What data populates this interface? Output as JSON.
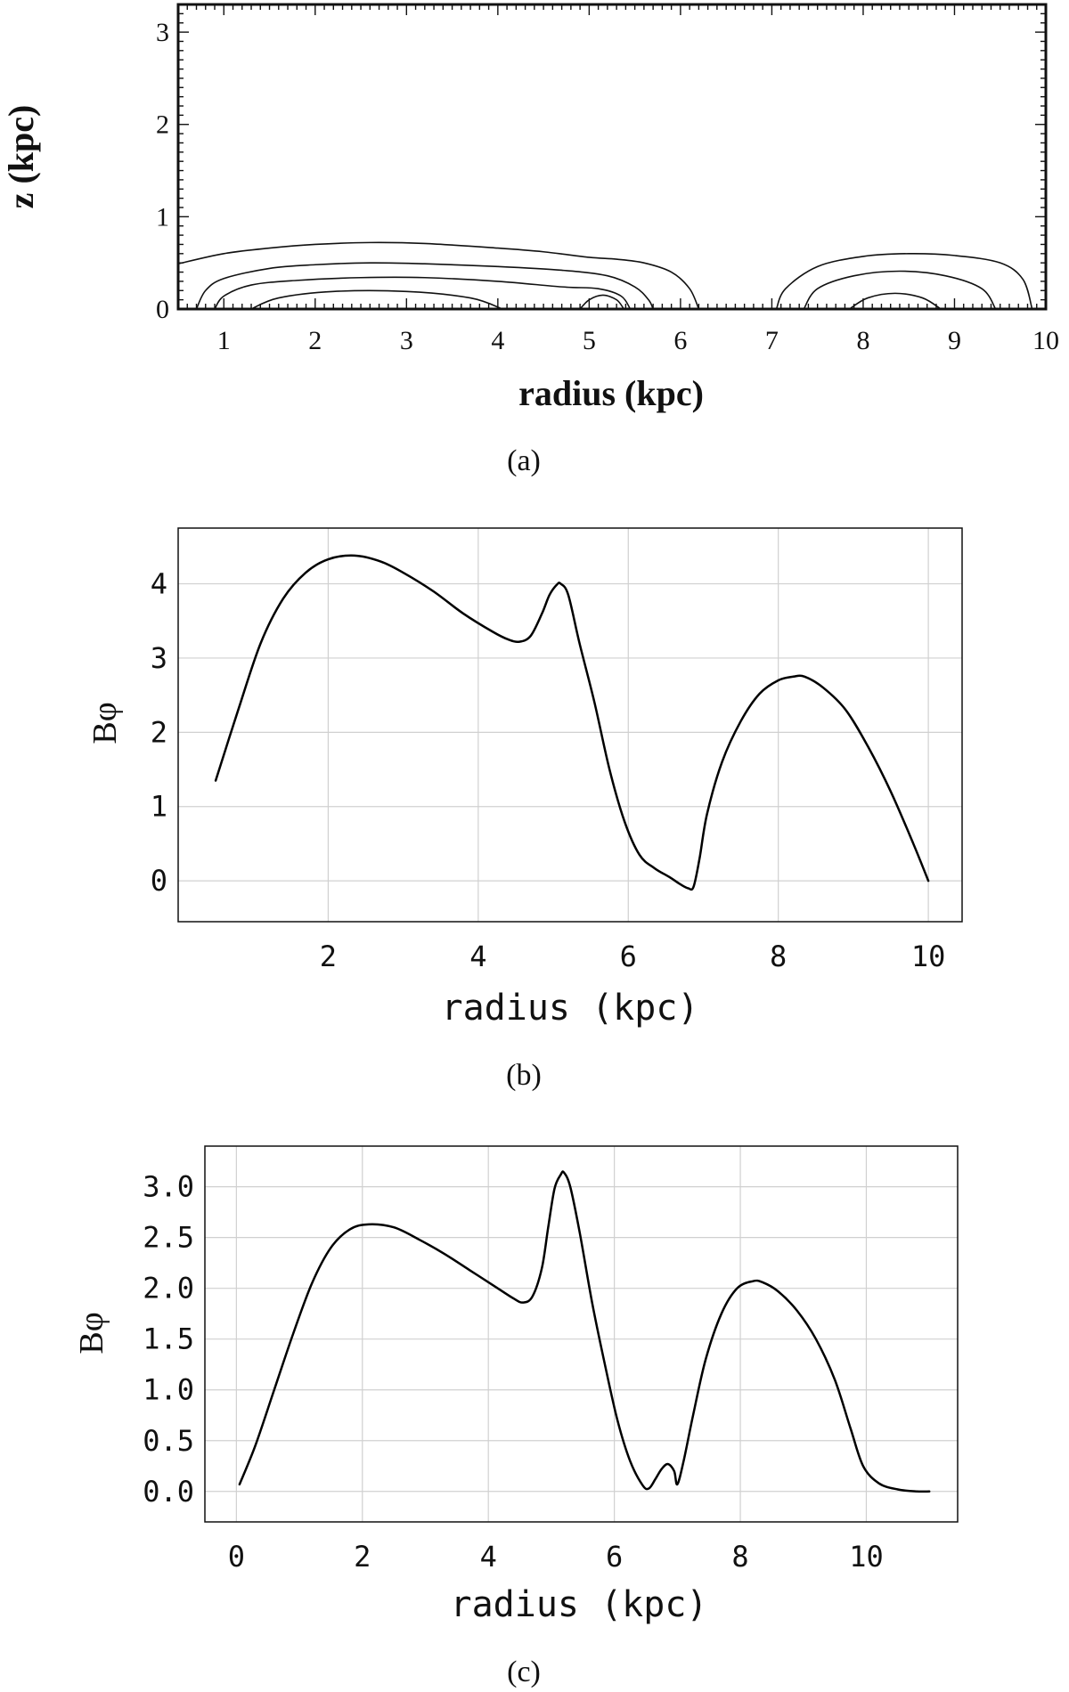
{
  "chart_data": [
    {
      "panel_label": "(a)",
      "type": "contour",
      "xlabel": "radius (kpc)",
      "ylabel": "z (kpc)",
      "xlim": [
        0.5,
        10
      ],
      "ylim": [
        0,
        3.3
      ],
      "xticks": [
        "1",
        "2",
        "3",
        "4",
        "5",
        "6",
        "7",
        "8",
        "9",
        "10"
      ],
      "yticks": [
        "0",
        "1",
        "2",
        "3"
      ],
      "grid": false,
      "contours": [
        {
          "region": "inner",
          "points": [
            [
              0.5,
              0.49
            ],
            [
              1.0,
              0.6
            ],
            [
              1.5,
              0.66
            ],
            [
              2.0,
              0.7
            ],
            [
              2.6,
              0.72
            ],
            [
              3.2,
              0.71
            ],
            [
              4.0,
              0.66
            ],
            [
              4.5,
              0.62
            ],
            [
              5.0,
              0.56
            ],
            [
              5.3,
              0.54
            ],
            [
              5.6,
              0.5
            ],
            [
              5.9,
              0.4
            ],
            [
              6.1,
              0.22
            ],
            [
              6.2,
              0.0
            ]
          ]
        },
        {
          "region": "inner",
          "points": [
            [
              0.7,
              0.0
            ],
            [
              0.8,
              0.2
            ],
            [
              1.0,
              0.33
            ],
            [
              1.5,
              0.44
            ],
            [
              2.0,
              0.48
            ],
            [
              2.6,
              0.5
            ],
            [
              3.2,
              0.49
            ],
            [
              4.0,
              0.46
            ],
            [
              4.7,
              0.42
            ],
            [
              5.2,
              0.36
            ],
            [
              5.5,
              0.24
            ],
            [
              5.65,
              0.1
            ],
            [
              5.7,
              0.0
            ]
          ]
        },
        {
          "region": "inner",
          "points": [
            [
              0.9,
              0.0
            ],
            [
              1.0,
              0.14
            ],
            [
              1.3,
              0.26
            ],
            [
              1.8,
              0.31
            ],
            [
              2.5,
              0.34
            ],
            [
              3.2,
              0.34
            ],
            [
              4.0,
              0.3
            ],
            [
              4.7,
              0.24
            ],
            [
              5.1,
              0.22
            ],
            [
              5.35,
              0.14
            ],
            [
              5.45,
              0.0
            ]
          ]
        },
        {
          "region": "inner",
          "points": [
            [
              1.3,
              0.0
            ],
            [
              1.6,
              0.12
            ],
            [
              2.2,
              0.19
            ],
            [
              3.0,
              0.19
            ],
            [
              3.7,
              0.12
            ],
            [
              4.05,
              0.0
            ]
          ]
        },
        {
          "region": "inner",
          "points": [
            [
              4.9,
              0.0
            ],
            [
              5.0,
              0.1
            ],
            [
              5.15,
              0.15
            ],
            [
              5.3,
              0.1
            ],
            [
              5.38,
              0.0
            ]
          ]
        },
        {
          "region": "outer",
          "points": [
            [
              7.05,
              0.0
            ],
            [
              7.15,
              0.22
            ],
            [
              7.5,
              0.46
            ],
            [
              8.0,
              0.57
            ],
            [
              8.5,
              0.6
            ],
            [
              9.0,
              0.58
            ],
            [
              9.5,
              0.5
            ],
            [
              9.75,
              0.32
            ],
            [
              9.85,
              0.0
            ]
          ]
        },
        {
          "region": "outer",
          "points": [
            [
              7.35,
              0.0
            ],
            [
              7.5,
              0.22
            ],
            [
              7.9,
              0.36
            ],
            [
              8.4,
              0.41
            ],
            [
              8.9,
              0.36
            ],
            [
              9.3,
              0.22
            ],
            [
              9.45,
              0.0
            ]
          ]
        },
        {
          "region": "outer",
          "points": [
            [
              7.85,
              0.0
            ],
            [
              8.05,
              0.12
            ],
            [
              8.35,
              0.17
            ],
            [
              8.65,
              0.12
            ],
            [
              8.85,
              0.0
            ]
          ]
        }
      ]
    },
    {
      "panel_label": "(b)",
      "type": "line",
      "xlabel": "radius (kpc)",
      "ylabel": "Bφ",
      "xlim": [
        0,
        10.45
      ],
      "ylim": [
        -0.55,
        4.75
      ],
      "xticks": [
        "2",
        "4",
        "6",
        "8",
        "10"
      ],
      "yticks": [
        "0",
        "1",
        "2",
        "3",
        "4"
      ],
      "grid": true,
      "x": [
        0.5,
        0.8,
        1.1,
        1.4,
        1.7,
        2.0,
        2.35,
        2.7,
        3.0,
        3.4,
        3.8,
        4.2,
        4.4,
        4.55,
        4.7,
        4.85,
        4.95,
        5.05,
        5.1,
        5.2,
        5.35,
        5.55,
        5.75,
        5.95,
        6.15,
        6.35,
        6.55,
        6.7,
        6.8,
        6.87,
        6.95,
        7.05,
        7.25,
        7.5,
        7.75,
        8.0,
        8.2,
        8.35,
        8.6,
        8.9,
        9.2,
        9.5,
        9.8,
        10.0
      ],
      "y": [
        1.35,
        2.3,
        3.2,
        3.8,
        4.15,
        4.33,
        4.38,
        4.3,
        4.15,
        3.9,
        3.6,
        3.35,
        3.25,
        3.22,
        3.3,
        3.6,
        3.85,
        3.99,
        4.0,
        3.85,
        3.2,
        2.4,
        1.5,
        0.8,
        0.35,
        0.17,
        0.05,
        -0.05,
        -0.1,
        -0.08,
        0.3,
        0.9,
        1.6,
        2.15,
        2.52,
        2.7,
        2.75,
        2.75,
        2.6,
        2.3,
        1.8,
        1.2,
        0.5,
        0.0
      ]
    },
    {
      "panel_label": "(c)",
      "type": "line",
      "xlabel": "radius (kpc)",
      "ylabel": "Bφ",
      "xlim": [
        -0.5,
        11.45
      ],
      "ylim": [
        -0.3,
        3.4
      ],
      "xticks": [
        "0",
        "2",
        "4",
        "6",
        "8",
        "10"
      ],
      "yticks": [
        "0.0",
        "0.5",
        "1.0",
        "1.5",
        "2.0",
        "2.5",
        "3.0"
      ],
      "grid": true,
      "x": [
        0.05,
        0.3,
        0.6,
        0.9,
        1.2,
        1.5,
        1.8,
        2.1,
        2.5,
        2.9,
        3.3,
        3.7,
        4.1,
        4.4,
        4.55,
        4.7,
        4.85,
        4.95,
        5.05,
        5.15,
        5.2,
        5.3,
        5.45,
        5.65,
        5.85,
        6.05,
        6.25,
        6.45,
        6.55,
        6.65,
        6.75,
        6.85,
        6.95,
        7.0,
        7.1,
        7.25,
        7.45,
        7.7,
        7.95,
        8.2,
        8.35,
        8.6,
        8.9,
        9.2,
        9.5,
        9.75,
        9.95,
        10.2,
        10.5,
        10.8,
        11.0
      ],
      "y": [
        0.07,
        0.45,
        1.0,
        1.55,
        2.05,
        2.4,
        2.58,
        2.63,
        2.6,
        2.48,
        2.34,
        2.18,
        2.02,
        1.9,
        1.86,
        1.92,
        2.2,
        2.6,
        2.98,
        3.12,
        3.14,
        3.0,
        2.55,
        1.85,
        1.25,
        0.7,
        0.3,
        0.06,
        0.03,
        0.12,
        0.22,
        0.27,
        0.2,
        0.07,
        0.3,
        0.75,
        1.3,
        1.75,
        2.0,
        2.07,
        2.06,
        1.97,
        1.78,
        1.5,
        1.1,
        0.62,
        0.25,
        0.08,
        0.02,
        0.0,
        0.0
      ]
    }
  ]
}
